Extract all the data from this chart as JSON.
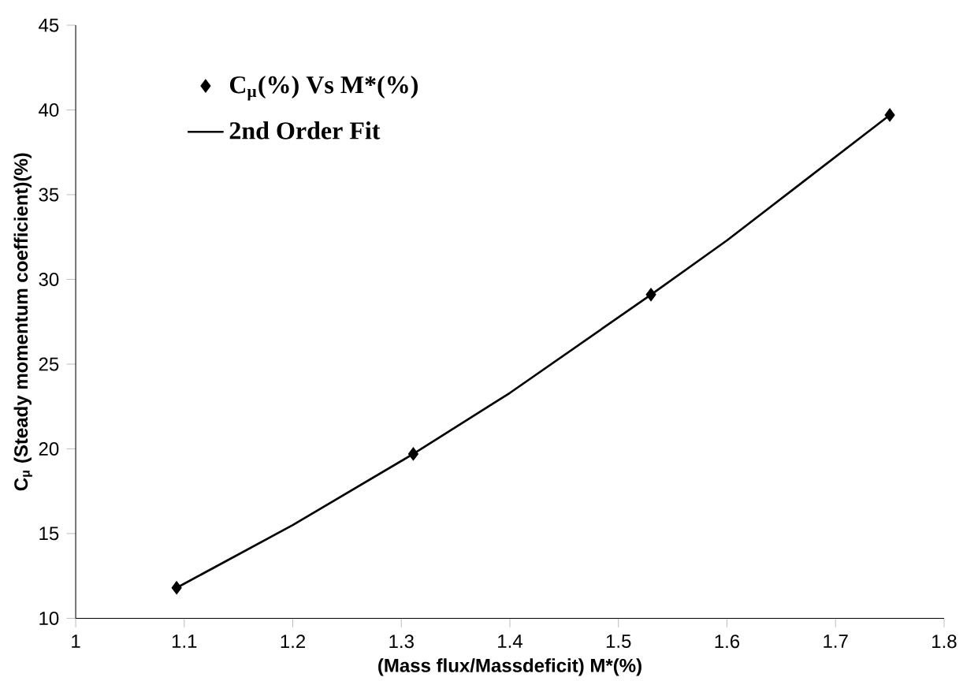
{
  "chart_data": {
    "type": "scatter",
    "xlabel": "(Mass flux/Massdeficit) M*(%)",
    "ylabel": "C$_{μ}$ (Steady momentum coefficient)(%)",
    "xlim": [
      1,
      1.8
    ],
    "xticks": [
      1,
      1.1,
      1.2,
      1.3,
      1.4,
      1.5,
      1.6,
      1.7,
      1.8
    ],
    "ylim": [
      10,
      45
    ],
    "yticks": [
      10,
      15,
      20,
      25,
      30,
      35,
      40,
      45
    ],
    "grid": false,
    "legend": "top left",
    "series": [
      {
        "name": "C$_{μ}$(%) Vs M*(%)",
        "marker": "diamond",
        "color": "#000000",
        "x": [
          1.093,
          1.311,
          1.53,
          1.75
        ],
        "values": [
          11.8,
          19.7,
          29.1,
          39.7
        ]
      },
      {
        "name": "2nd Order Fit",
        "type": "line",
        "marker": "none",
        "line_style": "solid",
        "color": "#000000",
        "x": [
          1.093,
          1.2,
          1.311,
          1.4,
          1.53,
          1.6,
          1.75
        ],
        "values": [
          11.8,
          15.5,
          19.7,
          23.3,
          29.1,
          32.3,
          39.7
        ]
      }
    ]
  }
}
